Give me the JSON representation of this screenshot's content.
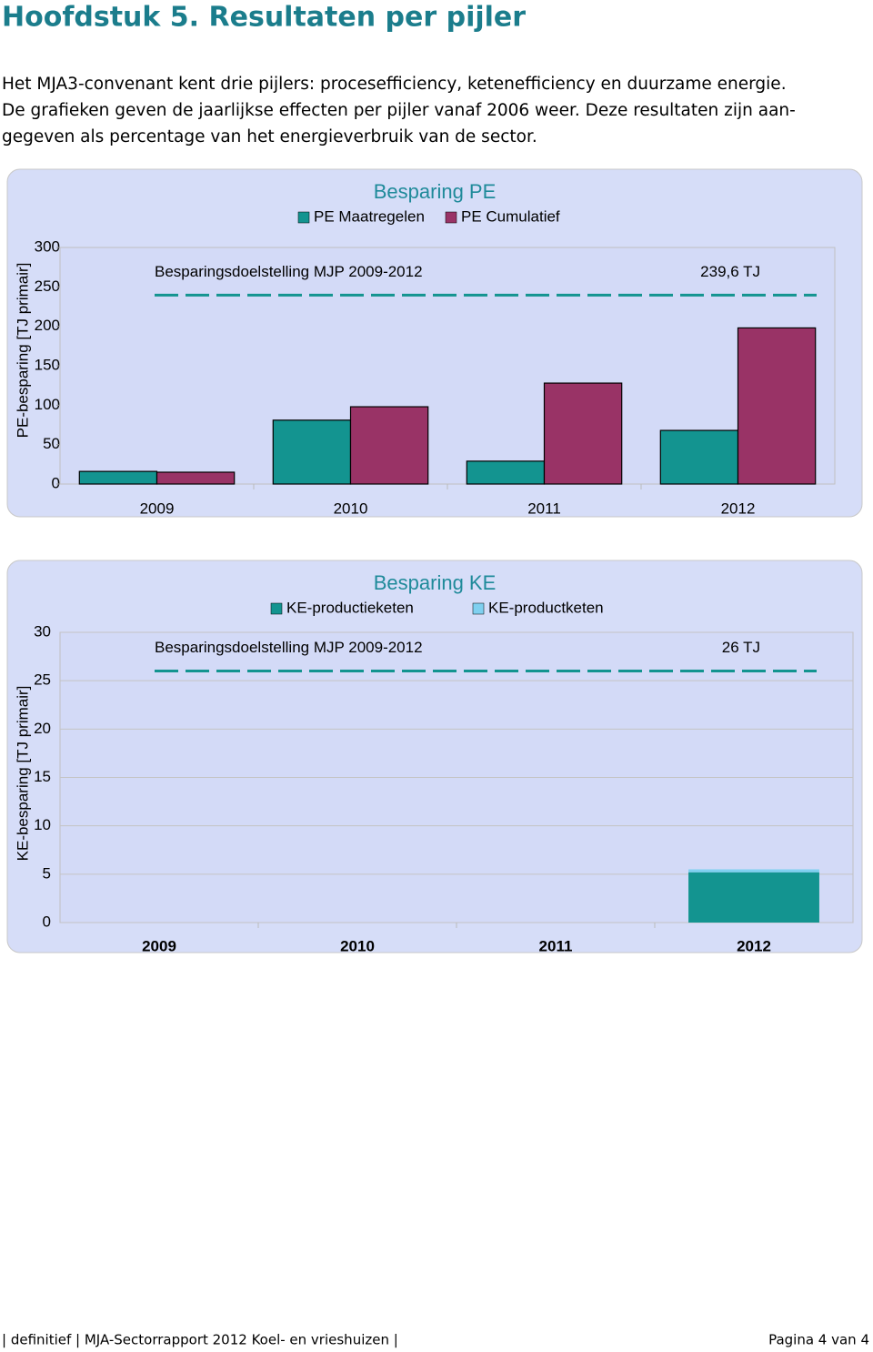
{
  "header": {
    "title": "Hoofdstuk 5. Resultaten per pijler"
  },
  "paragraph": {
    "lines": [
      "Het MJA3-convenant kent drie pijlers: procesefficiency, ketenefficiency en duurzame energie.",
      "De grafieken geven de jaarlijkse effecten per pijler vanaf 2006 weer. Deze resultaten zijn aan-",
      "gegeven als percentage van het energieverbruik van de sector."
    ]
  },
  "chart_data": [
    {
      "type": "bar",
      "title": "Besparing PE",
      "ylabel": "PE-besparing [TJ primair]",
      "categories": [
        "2009",
        "2010",
        "2011",
        "2012"
      ],
      "series": [
        {
          "name": "PE Maatregelen",
          "color": "#139490",
          "values": [
            16,
            81,
            29,
            68
          ]
        },
        {
          "name": "PE Cumulatief",
          "color": "#993366",
          "values": [
            15,
            98,
            128,
            198
          ]
        }
      ],
      "ylim": [
        0,
        300
      ],
      "yticks": [
        0,
        50,
        100,
        150,
        200,
        250,
        300
      ],
      "grid": false,
      "stacked": false,
      "target": {
        "name": "Besparingsdoelstelling MJP 2009-2012",
        "value": 239.6,
        "label": "239,6 TJ",
        "color": "#139490"
      }
    },
    {
      "type": "bar",
      "title": "Besparing KE",
      "ylabel": "KE-besparing [TJ primair]",
      "categories": [
        "2009",
        "2010",
        "2011",
        "2012"
      ],
      "series": [
        {
          "name": "KE-productieketen",
          "color": "#139490",
          "values": [
            0,
            0,
            0,
            5.2
          ]
        },
        {
          "name": "KE-productketen",
          "color": "#7fd0f0",
          "values": [
            0,
            0,
            0,
            0.3
          ]
        }
      ],
      "ylim": [
        0,
        30
      ],
      "yticks": [
        0,
        5,
        10,
        15,
        20,
        25,
        30
      ],
      "grid": true,
      "stacked": true,
      "target": {
        "name": "Besparingsdoelstelling MJP 2009-2012",
        "value": 26,
        "label": "26 TJ",
        "color": "#139490"
      }
    }
  ],
  "footer": {
    "left": "| definitief | MJA-Sectorrapport 2012 Koel- en vrieshuizen |",
    "right": "Pagina 4 van 4"
  }
}
